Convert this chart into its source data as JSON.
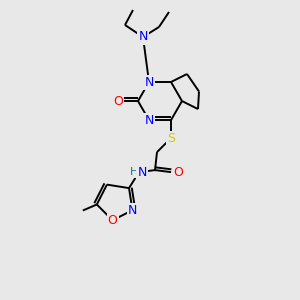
{
  "background_color": "#e8e8e8",
  "bond_color": "#000000",
  "atom_colors": {
    "N": "#0000ff",
    "O": "#ff0000",
    "S": "#cccc00",
    "H": "#008080",
    "C": "#000000"
  },
  "figsize": [
    3.0,
    3.0
  ],
  "dpi": 100
}
